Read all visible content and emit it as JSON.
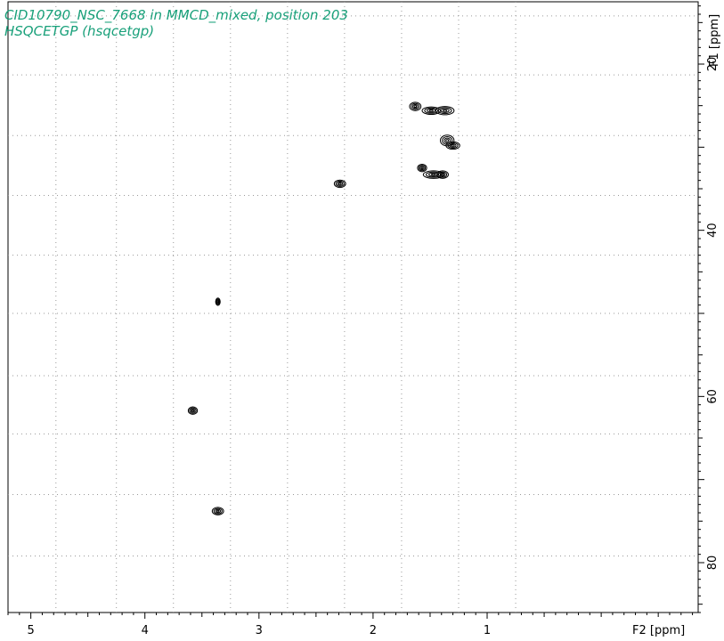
{
  "chart_data": {
    "type": "scatter",
    "title": "CID10790_NSC_7668 in MMCD_mixed, position 203",
    "subtitle": "HSQCETGP (hsqcetgp)",
    "xlabel": "F2 [ppm]",
    "ylabel": "F1 [ppm]",
    "xlim": [
      5.2,
      -0.85
    ],
    "ylim": [
      12.5,
      86.0
    ],
    "x_ticks": [
      5,
      4,
      3,
      2,
      1
    ],
    "y_ticks": [
      20,
      40,
      60,
      80
    ],
    "x_grid": [
      4.78,
      4.25,
      3.75,
      3.25,
      2.75,
      2.25,
      1.75,
      1.25,
      0.75
    ],
    "y_grid": [
      14.2,
      21.3,
      28.6,
      35.8,
      43.0,
      50.0,
      57.5,
      64.5,
      71.8,
      79.2
    ],
    "grid": true,
    "peaks": [
      {
        "x": 1.63,
        "y": 25.1,
        "w": 0.05,
        "h": 1.0
      },
      {
        "x": 1.49,
        "y": 25.6,
        "w": 0.08,
        "h": 0.9
      },
      {
        "x": 1.37,
        "y": 25.6,
        "w": 0.08,
        "h": 1.0
      },
      {
        "x": 1.35,
        "y": 29.2,
        "w": 0.06,
        "h": 1.3
      },
      {
        "x": 1.3,
        "y": 29.8,
        "w": 0.06,
        "h": 0.9
      },
      {
        "x": 1.57,
        "y": 32.5,
        "w": 0.04,
        "h": 0.9
      },
      {
        "x": 1.47,
        "y": 33.3,
        "w": 0.09,
        "h": 0.9
      },
      {
        "x": 1.39,
        "y": 33.3,
        "w": 0.05,
        "h": 0.9
      },
      {
        "x": 2.29,
        "y": 34.4,
        "w": 0.05,
        "h": 0.9
      },
      {
        "x": 3.36,
        "y": 48.6,
        "w": 0.02,
        "h": 0.9
      },
      {
        "x": 3.58,
        "y": 61.7,
        "w": 0.04,
        "h": 0.9
      },
      {
        "x": 3.36,
        "y": 73.8,
        "w": 0.05,
        "h": 0.9
      }
    ]
  }
}
